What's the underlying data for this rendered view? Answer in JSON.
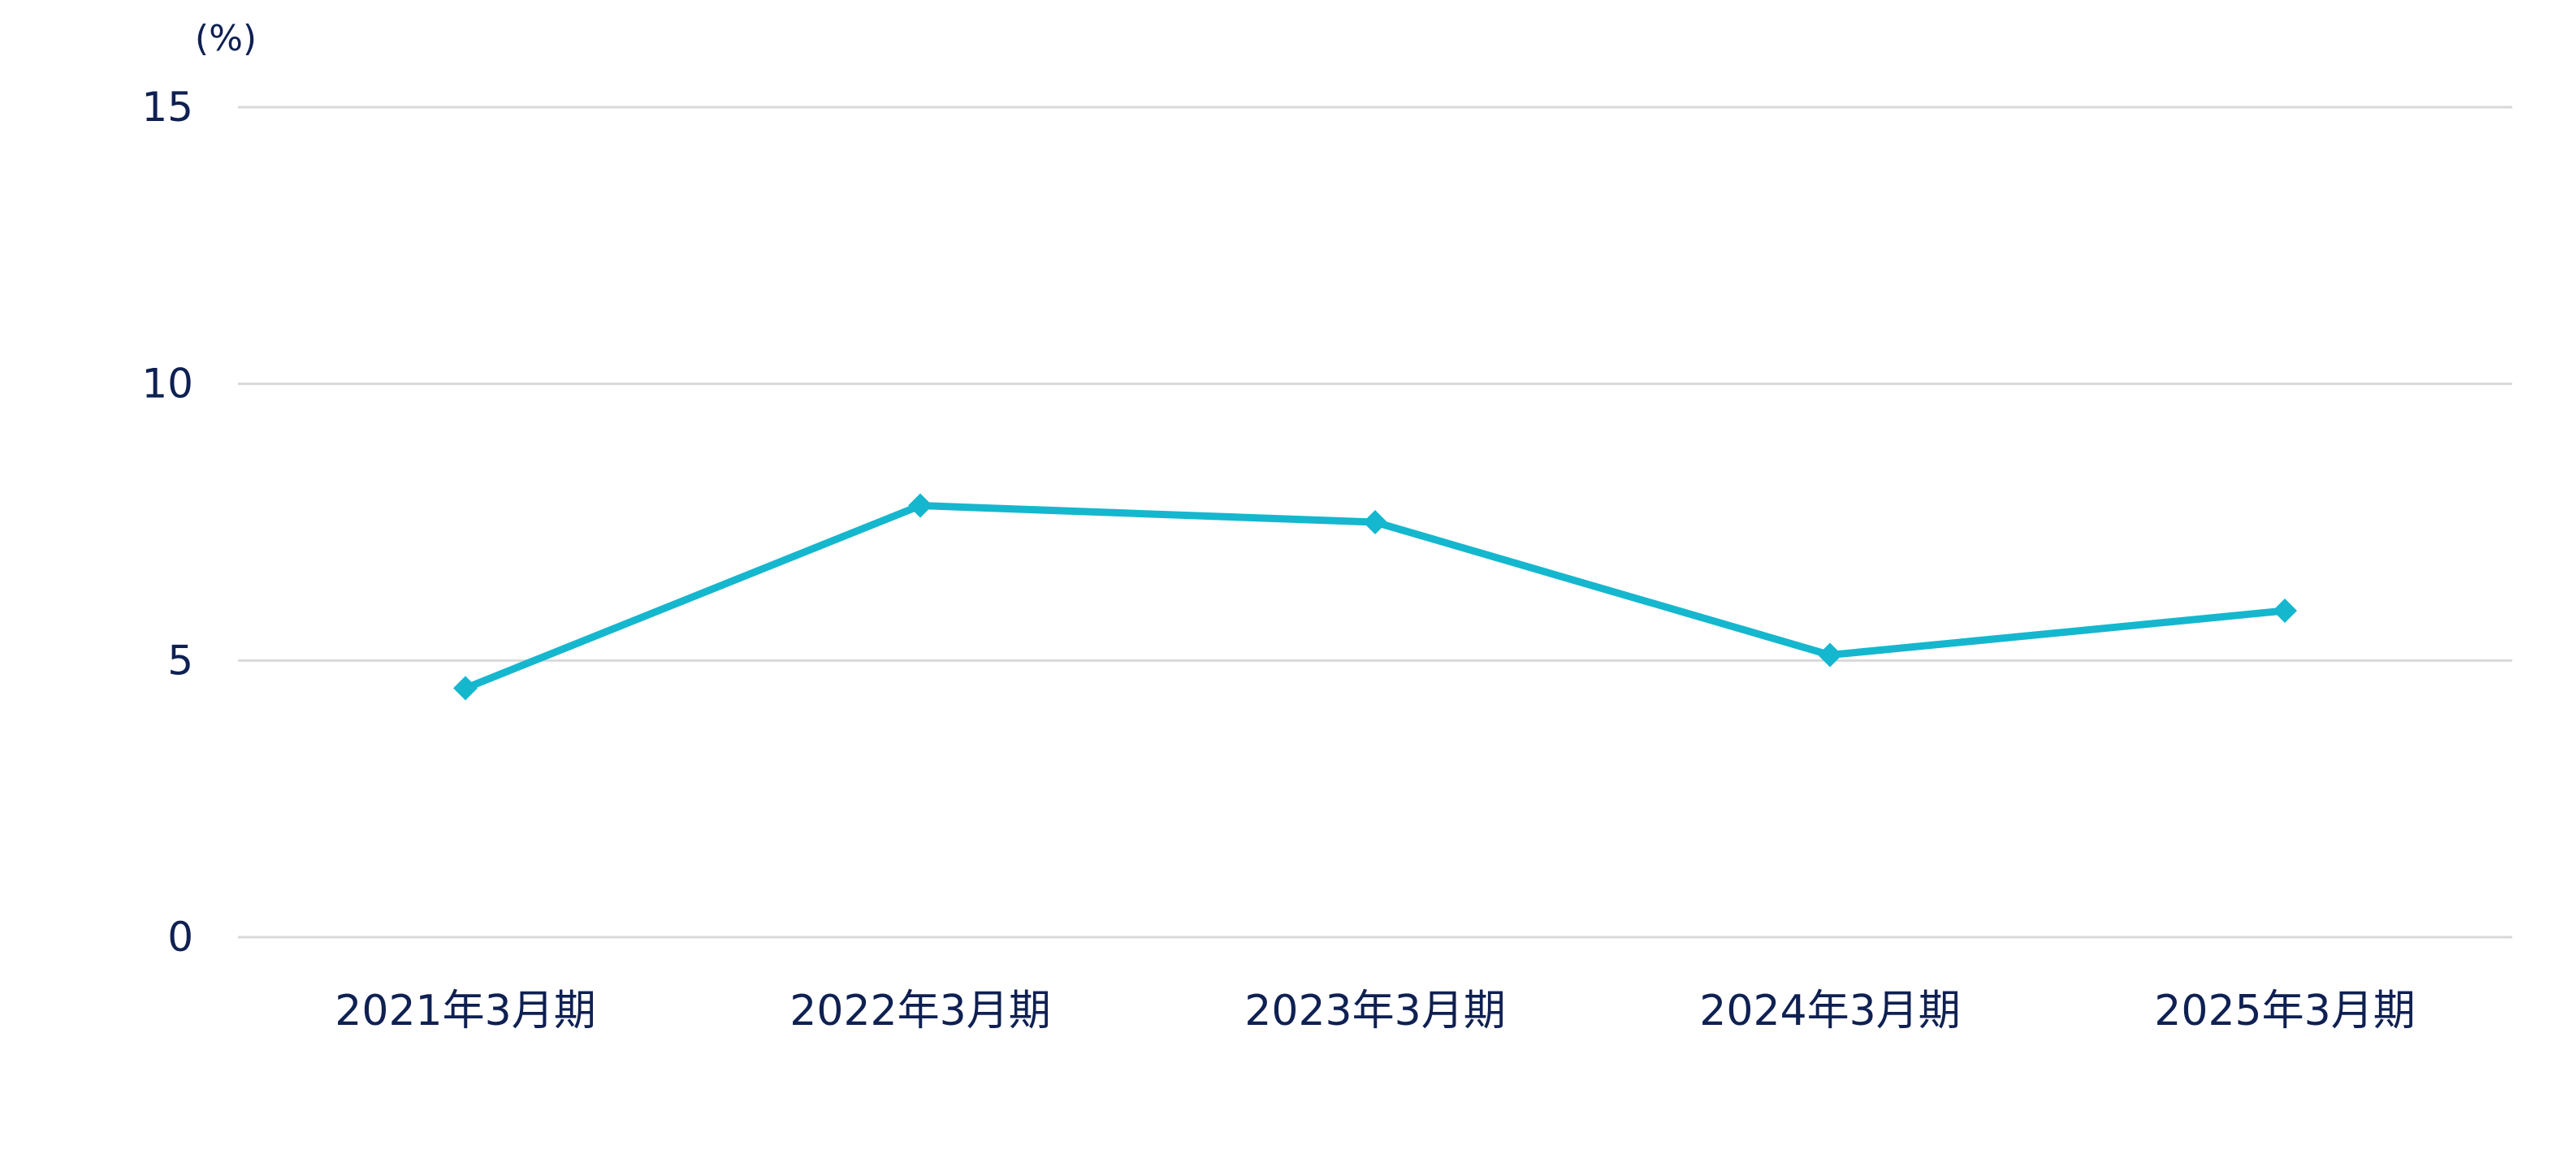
{
  "chart_data": {
    "type": "line",
    "unit_label": "(%)",
    "categories": [
      "2021年3月期",
      "2022年3月期",
      "2023年3月期",
      "2024年3月期",
      "2025年3月期"
    ],
    "series": [
      {
        "values": [
          4.5,
          7.8,
          7.5,
          5.1,
          5.9
        ]
      }
    ],
    "y_ticks": [
      0,
      5,
      10,
      15
    ],
    "ylim": [
      0,
      15
    ],
    "grid": true,
    "legend": "none",
    "marker": "diamond"
  },
  "colors": {
    "line": "#15B7CE",
    "marker": "#15B7CE",
    "text": "#0F2052",
    "grid": "#D9D9D9"
  }
}
